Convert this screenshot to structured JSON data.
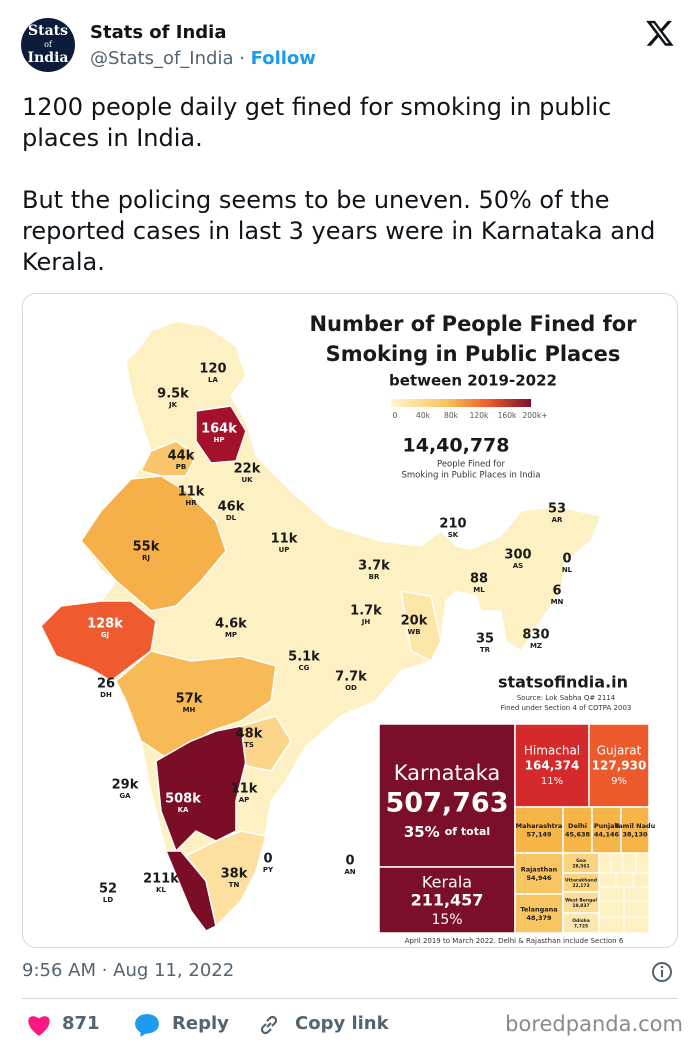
{
  "tweet": {
    "author": {
      "name": "Stats of India",
      "handle": "@Stats_of_India",
      "follow": "Follow",
      "avatar": [
        "Stats",
        "of",
        "India"
      ]
    },
    "text": [
      "1200 people daily get fined for smoking in public places in India.",
      "But the policing seems to be uneven. 50% of the reported cases in last 3 years were in Karnataka and Kerala."
    ],
    "timestamp": "9:56 AM · Aug 11, 2022",
    "likes": "871",
    "reply": "Reply",
    "copy_link": "Copy link"
  },
  "infographic": {
    "title": [
      "Number of People Fined for",
      "Smoking in Public Places"
    ],
    "subtitle": "between 2019-2022",
    "legend_ticks": [
      "0",
      "40k",
      "80k",
      "120k",
      "160k",
      "200k+"
    ],
    "total": "14,40,778",
    "total_caption": [
      "People Fined for",
      "Smoking in Public Places in India"
    ],
    "website": "statsofindia.in",
    "source": [
      "Source: Lok Sabha Q# 2114",
      "Fined under Section 4 of COTPA 2003"
    ],
    "map_labels": [
      {
        "value": "120",
        "code": "LA"
      },
      {
        "value": "9.5k",
        "code": "JK"
      },
      {
        "value": "164k",
        "code": "HP"
      },
      {
        "value": "44k",
        "code": "PB"
      },
      {
        "value": "22k",
        "code": "UK"
      },
      {
        "value": "11k",
        "code": "HR"
      },
      {
        "value": "46k",
        "code": "DL"
      },
      {
        "value": "55k",
        "code": "RJ"
      },
      {
        "value": "11k",
        "code": "UP"
      },
      {
        "value": "210",
        "code": "SK"
      },
      {
        "value": "53",
        "code": "AR"
      },
      {
        "value": "300",
        "code": "AS"
      },
      {
        "value": "0",
        "code": "NL"
      },
      {
        "value": "88",
        "code": "ML"
      },
      {
        "value": "6",
        "code": "MN"
      },
      {
        "value": "3.7k",
        "code": "BR"
      },
      {
        "value": "1.7k",
        "code": "JH"
      },
      {
        "value": "20k",
        "code": "WB"
      },
      {
        "value": "128k",
        "code": "GJ"
      },
      {
        "value": "4.6k",
        "code": "MP"
      },
      {
        "value": "5.1k",
        "code": "CG"
      },
      {
        "value": "35",
        "code": "TR"
      },
      {
        "value": "830",
        "code": "MZ"
      },
      {
        "value": "7.7k",
        "code": "OD"
      },
      {
        "value": "26",
        "code": "DH"
      },
      {
        "value": "57k",
        "code": "MH"
      },
      {
        "value": "48k",
        "code": "TS"
      },
      {
        "value": "29k",
        "code": "GA"
      },
      {
        "value": "508k",
        "code": "KA"
      },
      {
        "value": "11k",
        "code": "AP"
      },
      {
        "value": "0",
        "code": "PY"
      },
      {
        "value": "0",
        "code": "AN"
      },
      {
        "value": "38k",
        "code": "TN"
      },
      {
        "value": "211k",
        "code": "KL"
      },
      {
        "value": "52",
        "code": "LD"
      }
    ],
    "treemap": [
      {
        "name": "Karnataka",
        "value": "507,763",
        "share": "35%",
        "note": "of total"
      },
      {
        "name": "Kerala",
        "value": "211,457",
        "share": "15%"
      },
      {
        "name": "Himachal",
        "value": "164,374",
        "share": "11%"
      },
      {
        "name": "Gujarat",
        "value": "127,930",
        "share": "9%"
      },
      {
        "name": "Maharashtra",
        "value": "57,149"
      },
      {
        "name": "Delhi",
        "value": "45,638"
      },
      {
        "name": "Punjab",
        "value": "44,146"
      },
      {
        "name": "Tamil Nadu",
        "value": "38,130"
      },
      {
        "name": "Rajasthan",
        "value": "54,946"
      },
      {
        "name": "Telangana",
        "value": "48,379"
      },
      {
        "name": "Goa",
        "value": "28,561"
      },
      {
        "name": "Uttarakhand",
        "value": "22,173"
      },
      {
        "name": "West Bengal",
        "value": "19,837"
      },
      {
        "name": "Odisha",
        "value": "7,725"
      }
    ],
    "footnote": "April 2019 to March 2022. Delhi & Rajasthan include Section 6"
  },
  "watermark": "boredpanda.com"
}
